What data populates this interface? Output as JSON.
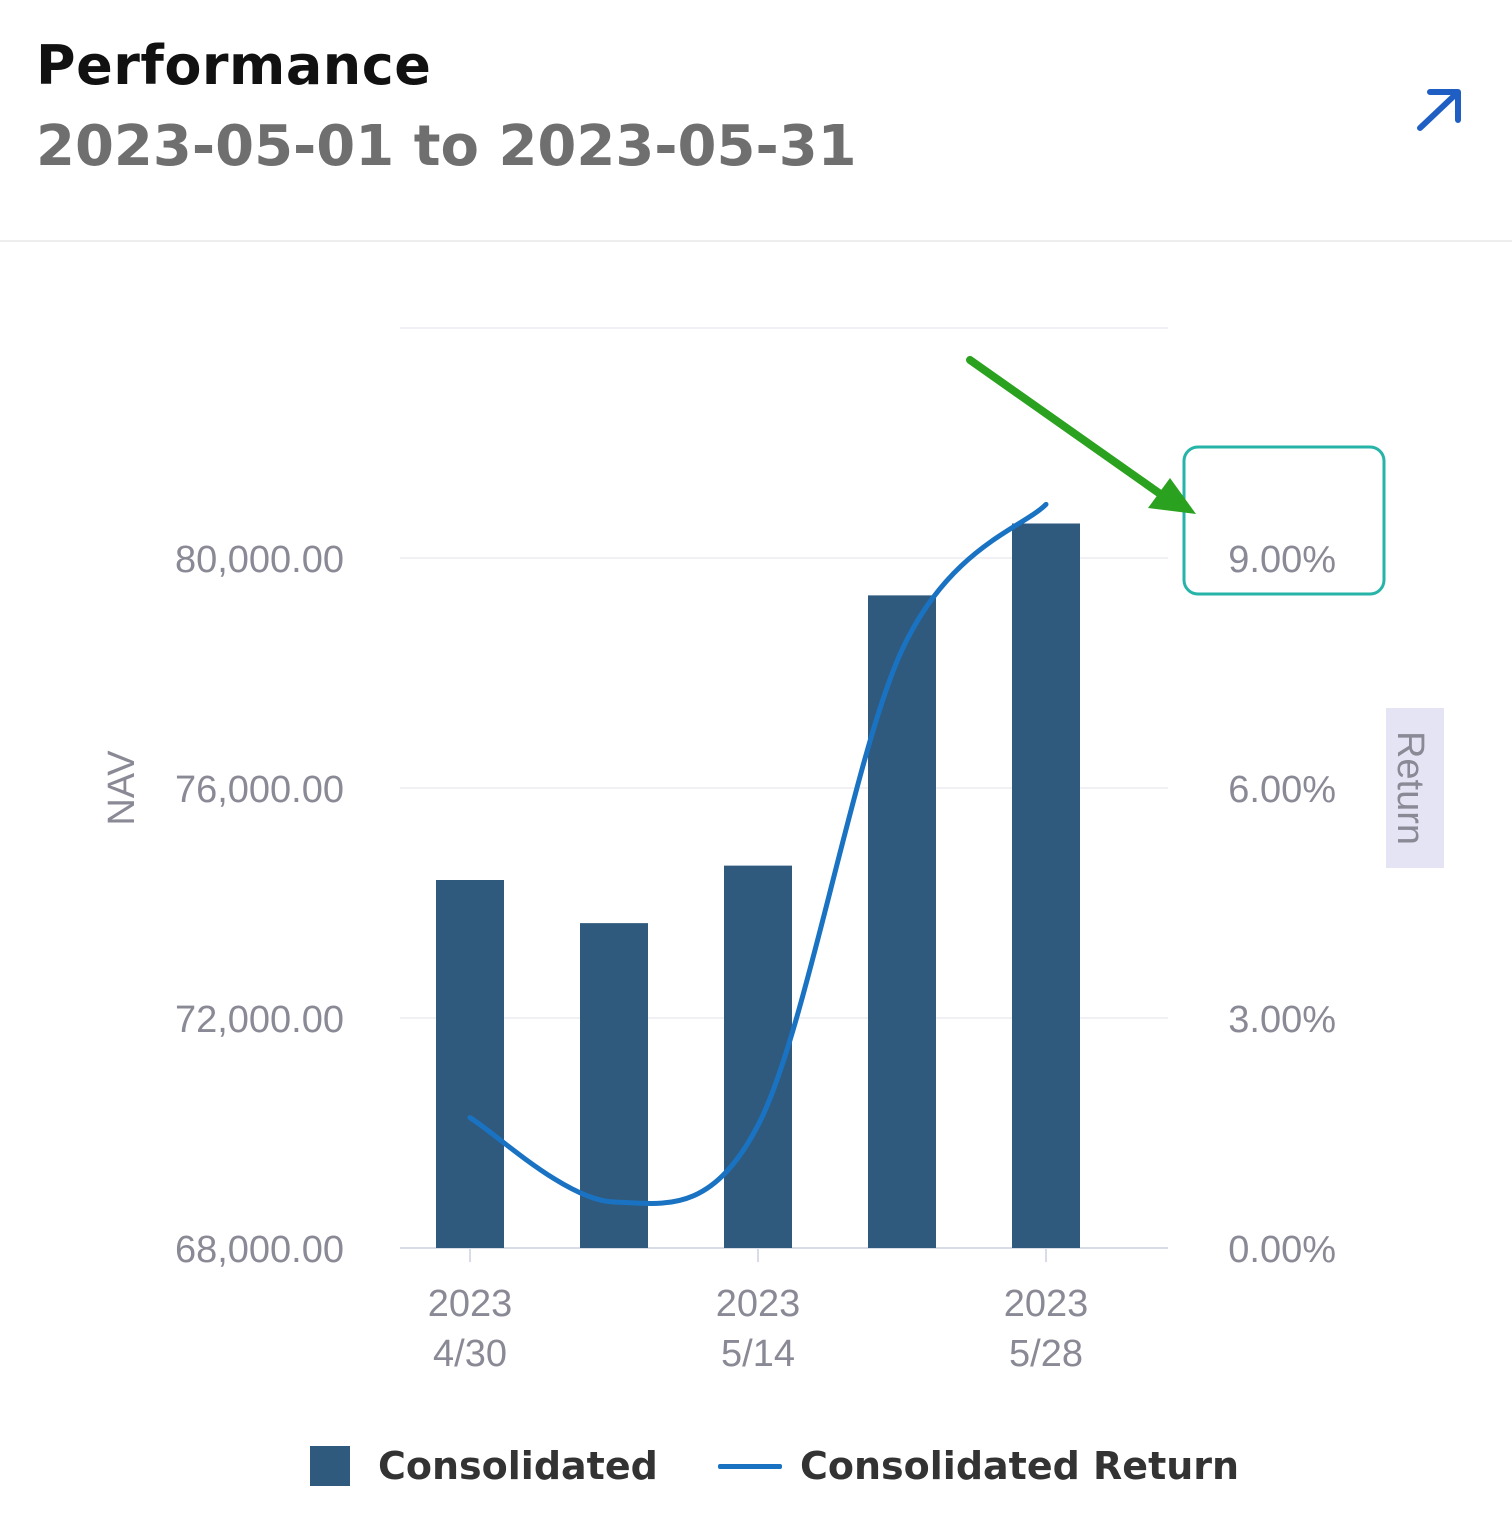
{
  "header": {
    "title": "Performance",
    "subtitle": "2023-05-01 to 2023-05-31",
    "expand_icon": "arrow-up-right-icon"
  },
  "colors": {
    "bar": "#2f5a7d",
    "line": "#1a73c2",
    "highlight_box": "#26b3a8",
    "annotation_arrow": "#2aa21f",
    "axis_text": "#8a8a96"
  },
  "chart_data": {
    "type": "bar",
    "categories": [
      "2023-04-30",
      "2023-05-07",
      "2023-05-14",
      "2023-05-21",
      "2023-05-28"
    ],
    "x_tick_labels": [
      {
        "index": 0,
        "line1": "2023",
        "line2": "4/30"
      },
      {
        "index": 2,
        "line1": "2023",
        "line2": "5/14"
      },
      {
        "index": 4,
        "line1": "2023",
        "line2": "5/28"
      }
    ],
    "series": [
      {
        "name": "Consolidated",
        "type": "bar",
        "axis": "left",
        "values": [
          74400,
          73650,
          74650,
          79350,
          80600
        ]
      },
      {
        "name": "Consolidated Return",
        "type": "line",
        "axis": "right",
        "values": [
          1.7,
          0.6,
          1.6,
          7.8,
          9.7
        ]
      }
    ],
    "left_axis": {
      "label": "NAV",
      "ylim": [
        68000,
        84000
      ],
      "ticks": [
        "68,000.00",
        "72,000.00",
        "76,000.00",
        "80,000.00"
      ],
      "tick_values": [
        68000,
        72000,
        76000,
        80000
      ]
    },
    "right_axis": {
      "label": "Return",
      "ylim": [
        0,
        12
      ],
      "ticks": [
        "0.00%",
        "3.00%",
        "6.00%",
        "9.00%"
      ],
      "tick_values": [
        0,
        3,
        6,
        9
      ]
    },
    "legend_position": "bottom",
    "grid": true,
    "annotations": [
      {
        "type": "highlight-box-with-arrow",
        "target": "9.00%"
      }
    ]
  },
  "legend": {
    "bar_label": "Consolidated",
    "line_label": "Consolidated Return"
  }
}
